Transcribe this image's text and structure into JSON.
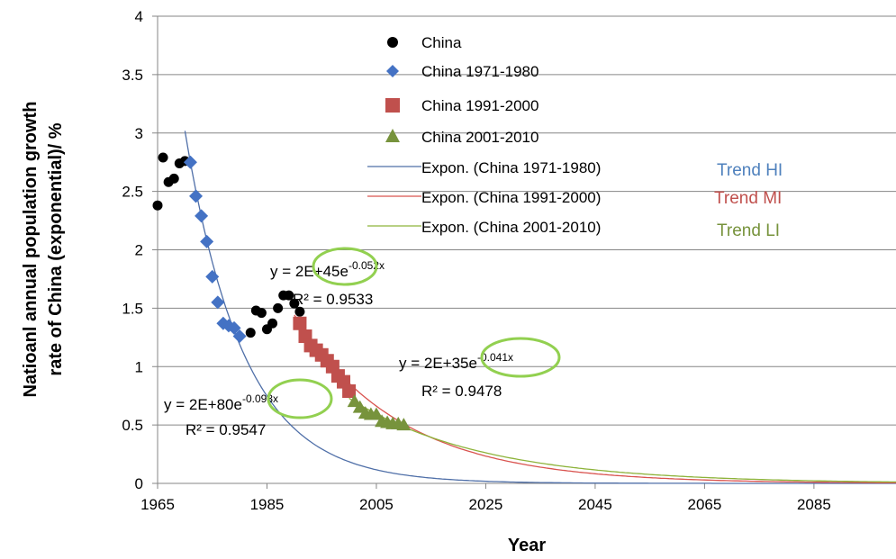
{
  "chart_data": {
    "type": "scatter",
    "xlabel": "Year",
    "ylabel_lines": [
      "Natioanl annual population growth",
      "rate of China (exponential)/ %"
    ],
    "xlim": [
      1965,
      2100
    ],
    "ylim": [
      0,
      4
    ],
    "x_ticks": [
      "1965",
      "1985",
      "2005",
      "2025",
      "2045",
      "2065",
      "2085"
    ],
    "y_ticks": [
      "0",
      "0.5",
      "1",
      "1.5",
      "2",
      "2.5",
      "3",
      "3.5",
      "4"
    ],
    "grid": "horizontal",
    "legend_position": "top-center",
    "series": [
      {
        "name": "China",
        "marker": "circle",
        "color": "#000000",
        "points": [
          [
            1965,
            2.38
          ],
          [
            1966,
            2.79
          ],
          [
            1967,
            2.58
          ],
          [
            1968,
            2.61
          ],
          [
            1969,
            2.74
          ],
          [
            1970,
            2.76
          ],
          [
            1982,
            1.29
          ],
          [
            1983,
            1.48
          ],
          [
            1984,
            1.46
          ],
          [
            1985,
            1.32
          ],
          [
            1986,
            1.37
          ],
          [
            1987,
            1.5
          ],
          [
            1988,
            1.61
          ],
          [
            1989,
            1.61
          ],
          [
            1990,
            1.54
          ],
          [
            1991,
            1.47
          ]
        ]
      },
      {
        "name": "China 1971-1980",
        "marker": "diamond",
        "color": "#4472C4",
        "points": [
          [
            1971,
            2.75
          ],
          [
            1972,
            2.46
          ],
          [
            1973,
            2.29
          ],
          [
            1974,
            2.07
          ],
          [
            1975,
            1.77
          ],
          [
            1976,
            1.55
          ],
          [
            1977,
            1.37
          ],
          [
            1978,
            1.35
          ],
          [
            1979,
            1.33
          ],
          [
            1980,
            1.26
          ]
        ]
      },
      {
        "name": "China 1991-2000",
        "marker": "square",
        "color": "#C0504D",
        "points": [
          [
            1991,
            1.37
          ],
          [
            1992,
            1.26
          ],
          [
            1993,
            1.18
          ],
          [
            1994,
            1.14
          ],
          [
            1995,
            1.1
          ],
          [
            1996,
            1.05
          ],
          [
            1997,
            1.0
          ],
          [
            1998,
            0.92
          ],
          [
            1999,
            0.87
          ],
          [
            2000,
            0.79
          ]
        ]
      },
      {
        "name": "China 2001-2010",
        "marker": "triangle",
        "color": "#77933C",
        "points": [
          [
            2001,
            0.7
          ],
          [
            2002,
            0.65
          ],
          [
            2003,
            0.6
          ],
          [
            2004,
            0.59
          ],
          [
            2005,
            0.59
          ],
          [
            2006,
            0.53
          ],
          [
            2007,
            0.52
          ],
          [
            2008,
            0.51
          ],
          [
            2009,
            0.51
          ],
          [
            2010,
            0.5
          ]
        ]
      }
    ],
    "trendlines": [
      {
        "name": "Expon. (China 1971-1980)",
        "color": "#4F6FA8",
        "anchor": [
          1971,
          2.75
        ],
        "rate": 0.093,
        "x_range": [
          1970,
          2100
        ]
      },
      {
        "name": "Expon. (China 1991-2000)",
        "color": "#D9534F",
        "anchor": [
          1991,
          1.37
        ],
        "rate": 0.052,
        "x_range": [
          1990,
          2100
        ]
      },
      {
        "name": "Expon. (China 2001-2010)",
        "color": "#8DB33A",
        "anchor": [
          2001,
          0.7
        ],
        "rate": 0.041,
        "x_range": [
          2000,
          2100
        ]
      }
    ],
    "equations": [
      {
        "eq_base": "y = 2E+80e",
        "eq_exp": "-0.093x",
        "r2": "R² = 0.9547"
      },
      {
        "eq_base": "y = 2E+45e",
        "eq_exp": "-0.052x",
        "r2": "R² = 0.9533"
      },
      {
        "eq_base": "y = 2E+35e",
        "eq_exp": "-0.041x",
        "r2": "R² = 0.9478"
      }
    ],
    "trend_tags": [
      {
        "text": "Trend HI",
        "color": "#4F81BD"
      },
      {
        "text": "Trend MI",
        "color": "#C0504D"
      },
      {
        "text": "Trend LI",
        "color": "#77933C"
      }
    ],
    "highlight_color": "#92D050"
  }
}
